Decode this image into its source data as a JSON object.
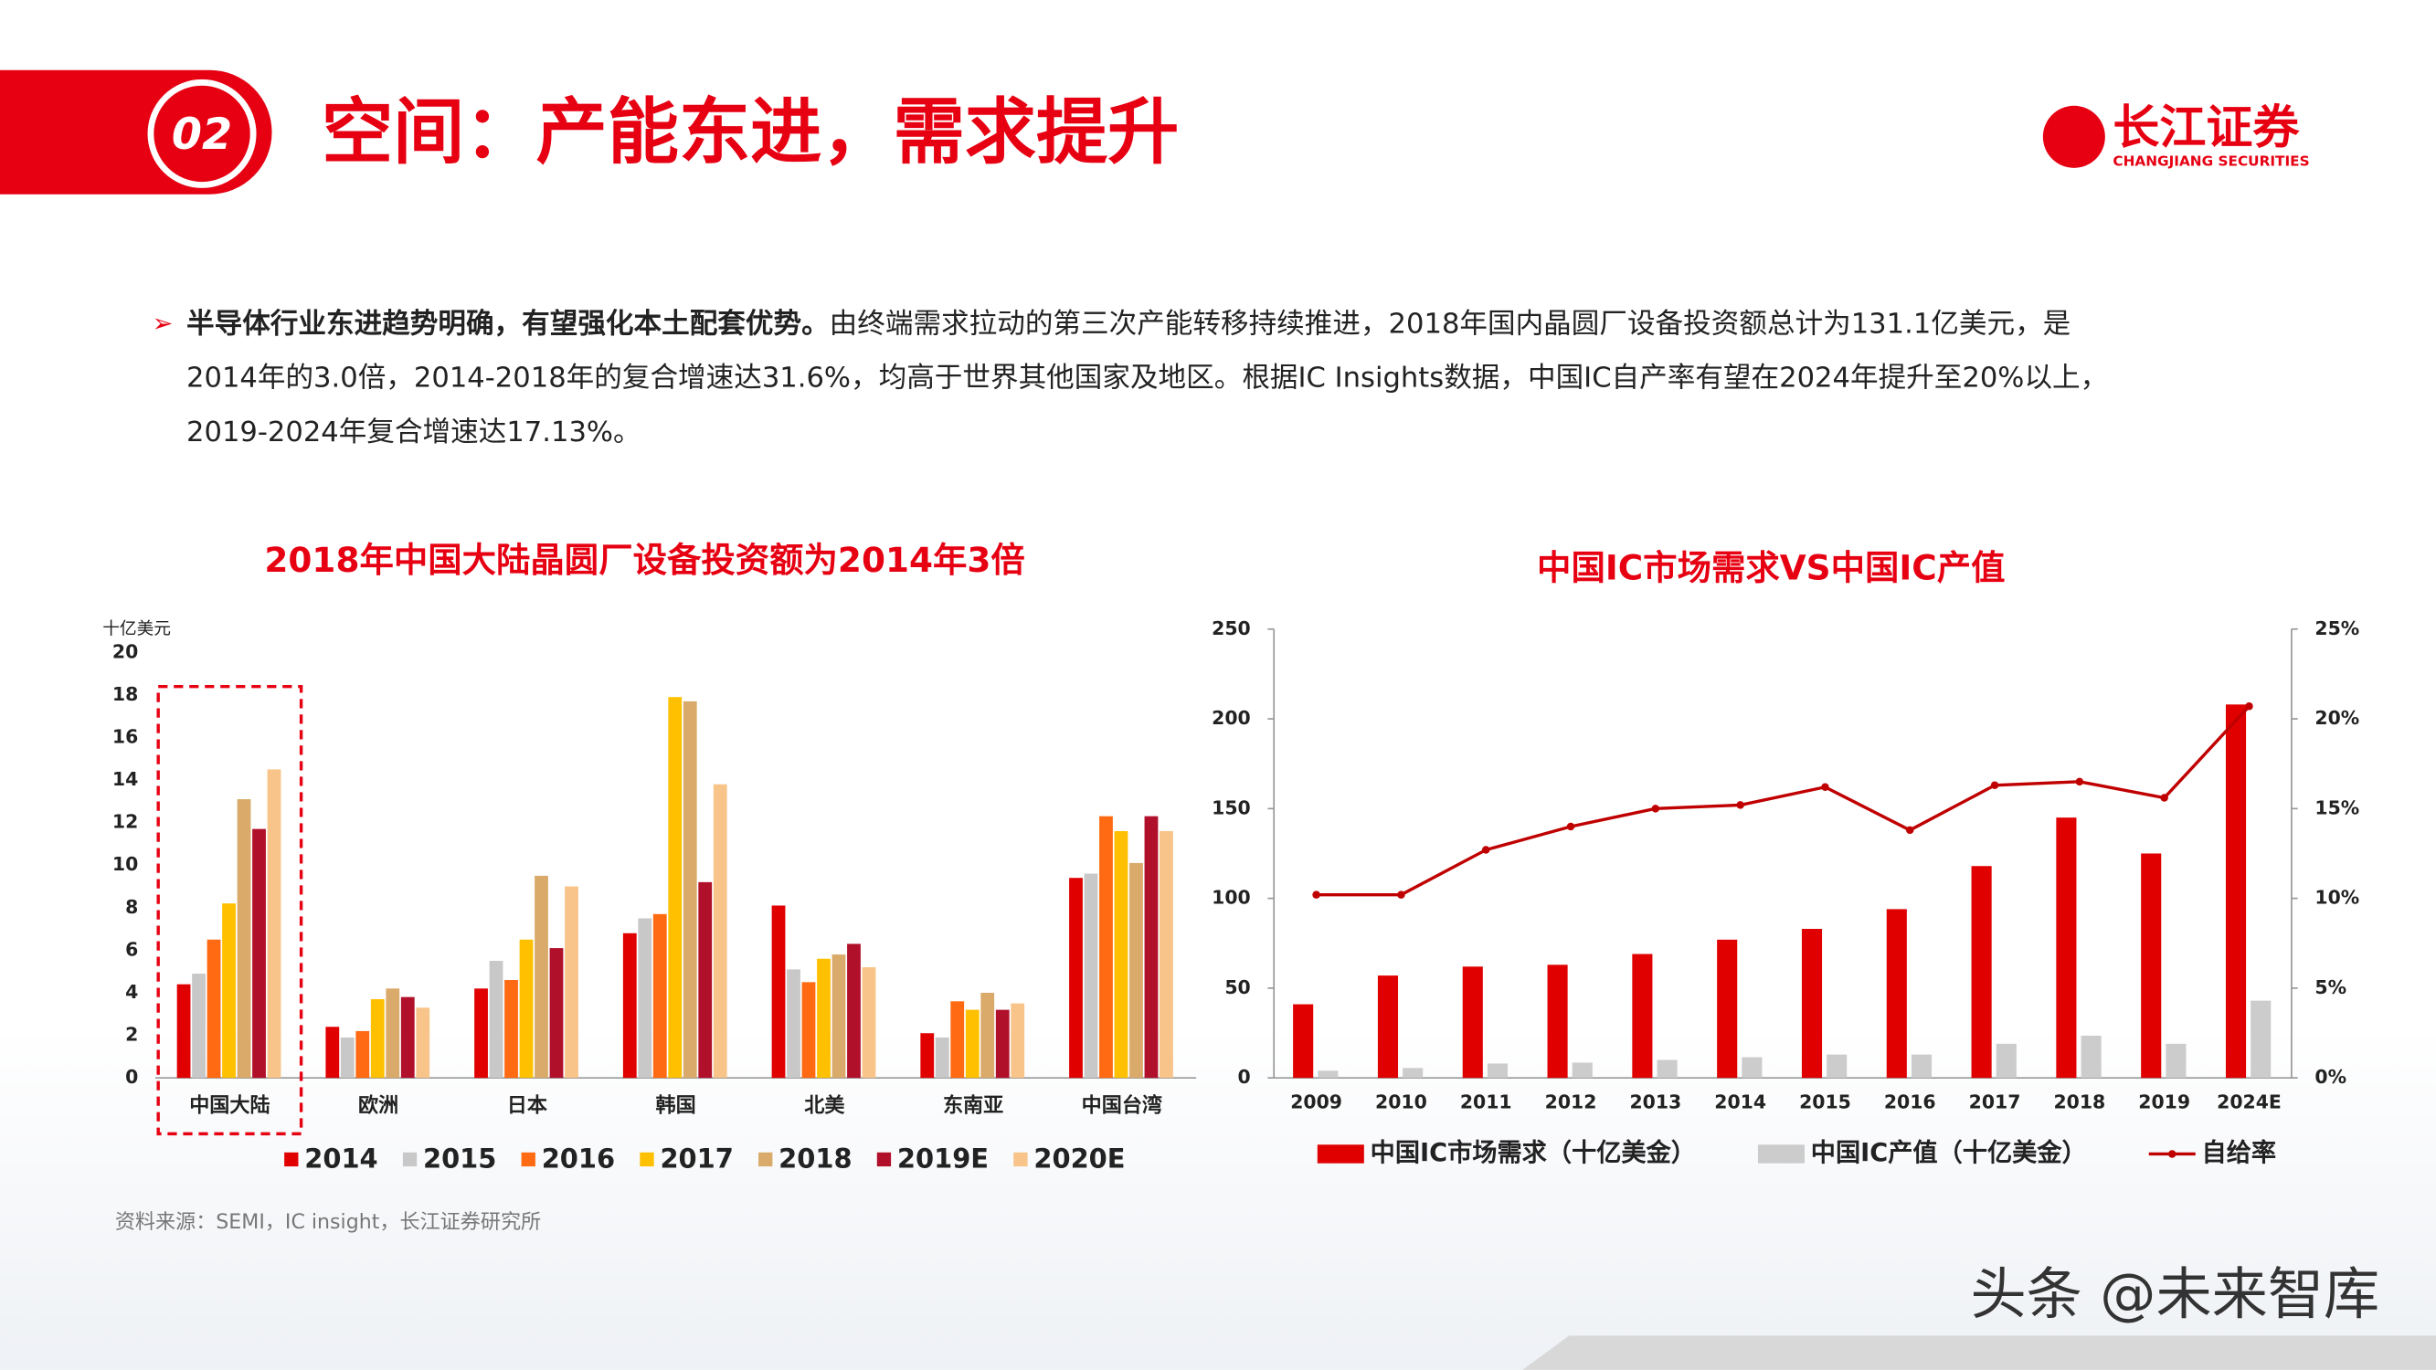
{
  "header": {
    "number": "02",
    "title": "空间：产能东进，需求提升",
    "logo_cn": "长江证券",
    "logo_en": "CHANGJIANG SECURITIES"
  },
  "body": {
    "bold": "半导体行业东进趋势明确，有望强化本土配套优势。",
    "line1": "由终端需求拉动的第三次产能转移持续推进，2018年国内晶圆厂设备投资额总计为131.1亿美元，是",
    "line2": "2014年的3.0倍，2014-2018年的复合增速达31.6%，均高于世界其他国家及地区。根据IC Insights数据，中国IC自产率有望在2024年提升至20%以上，",
    "line3": "2019-2024年复合增速达17.13%。"
  },
  "chart_data": [
    {
      "type": "bar",
      "title": "2018年中国大陆晶圆厂设备投资额为2014年3倍",
      "y_label": "十亿美元",
      "categories": [
        "中国大陆",
        "欧洲",
        "日本",
        "韩国",
        "北美",
        "东南亚",
        "中国台湾"
      ],
      "series": [
        {
          "name": "2014",
          "color": "#e00000",
          "values": [
            4.4,
            2.4,
            4.2,
            6.8,
            8.1,
            2.1,
            9.4
          ]
        },
        {
          "name": "2015",
          "color": "#c8c8c8",
          "values": [
            4.9,
            1.9,
            5.5,
            7.5,
            5.1,
            1.9,
            9.6
          ]
        },
        {
          "name": "2016",
          "color": "#ff6a13",
          "values": [
            6.5,
            2.2,
            4.6,
            7.7,
            4.5,
            3.6,
            12.3
          ]
        },
        {
          "name": "2017",
          "color": "#ffc000",
          "values": [
            8.2,
            3.7,
            6.5,
            17.9,
            5.6,
            3.2,
            11.6
          ]
        },
        {
          "name": "2018",
          "color": "#d9aa6a",
          "values": [
            13.1,
            4.2,
            9.5,
            17.7,
            5.8,
            4.0,
            10.1
          ]
        },
        {
          "name": "2019E",
          "color": "#b0102a",
          "values": [
            11.7,
            3.8,
            6.1,
            9.2,
            6.3,
            3.2,
            12.3
          ]
        },
        {
          "name": "2020E",
          "color": "#f8c48a",
          "values": [
            14.5,
            3.3,
            9.0,
            13.8,
            5.2,
            3.5,
            11.6
          ]
        }
      ],
      "ylim": [
        0,
        20
      ],
      "yticks": [
        0,
        2,
        4,
        6,
        8,
        10,
        12,
        14,
        16,
        18,
        20
      ],
      "legend": "bottom"
    },
    {
      "type": "combo",
      "title": "中国IC市场需求VS中国IC产值",
      "categories": [
        "2009",
        "2010",
        "2011",
        "2012",
        "2013",
        "2014",
        "2015",
        "2016",
        "2017",
        "2018",
        "2019",
        "2024E"
      ],
      "series": [
        {
          "name": "中国IC市场需求（十亿美金）",
          "color": "#e00000",
          "kind": "bar",
          "values": [
            41,
            57,
            62,
            63,
            69,
            77,
            83,
            94,
            118,
            145,
            125,
            208
          ]
        },
        {
          "name": "中国IC产值（十亿美金）",
          "color": "#cccccc",
          "kind": "bar",
          "values": [
            4,
            5.5,
            8,
            8.5,
            10,
            11.5,
            13,
            13,
            19,
            23.5,
            19,
            43
          ]
        },
        {
          "name": "自给率",
          "color": "#c00000",
          "kind": "line",
          "axis": "y2",
          "values": [
            10.2,
            10.2,
            12.7,
            14.0,
            15.0,
            15.2,
            16.2,
            13.8,
            16.3,
            16.5,
            15.6,
            20.7
          ]
        }
      ],
      "ylim": [
        0,
        250
      ],
      "yticks": [
        0,
        50,
        100,
        150,
        200,
        250
      ],
      "y2lim": [
        0,
        25
      ],
      "y2ticks": [
        {
          "value": 0,
          "label": "0%"
        },
        {
          "value": 5,
          "label": "5%"
        },
        {
          "value": 10,
          "label": "10%"
        },
        {
          "value": 15,
          "label": "15%"
        },
        {
          "value": 20,
          "label": "20%"
        },
        {
          "value": 25,
          "label": "25%"
        }
      ],
      "legend": "bottom"
    }
  ],
  "source": "资料来源：SEMI，IC insight，长江证券研究所",
  "watermark": "头条 @未来智库"
}
